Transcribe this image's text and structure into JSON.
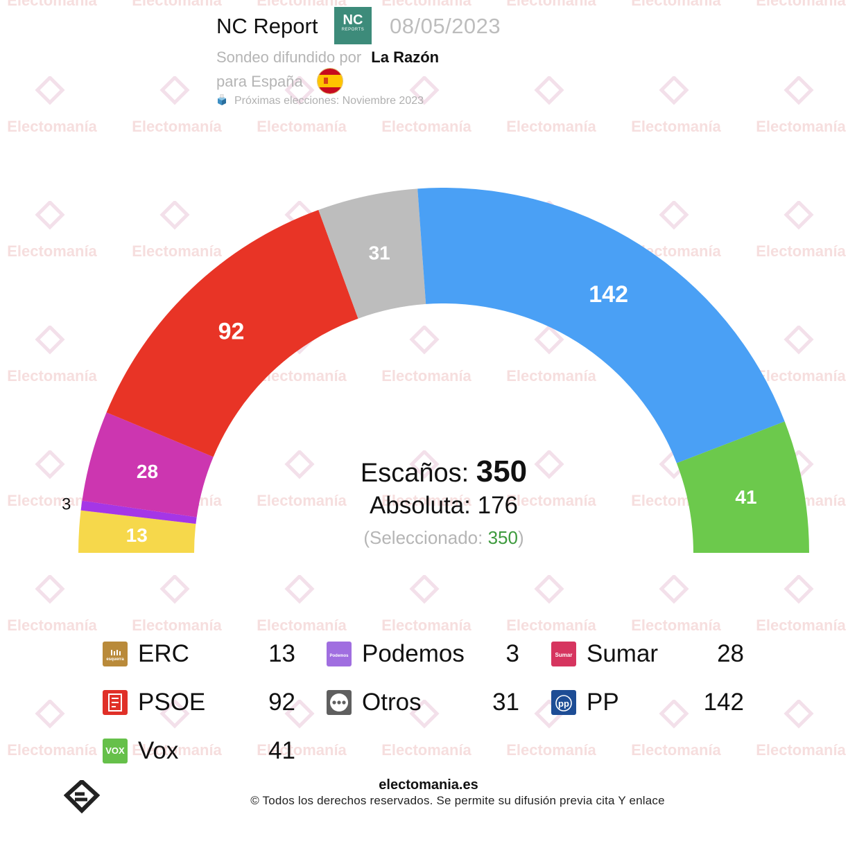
{
  "header": {
    "pollster": "NC Report",
    "pollster_logo_line1": "NC",
    "pollster_logo_line2": "REPORTS",
    "date": "08/05/2023",
    "published_prefix": "Sondeo difundido por",
    "media": "La Razón",
    "scope": "para España",
    "next_elections": "Próximas elecciones: Noviembre 2023"
  },
  "watermark_text": "Electomanía",
  "center": {
    "total_label": "Escaños:",
    "total_value": "350",
    "majority_label": "Absoluta:",
    "majority_value": "176",
    "selected_prefix": "(Seleccionado:",
    "selected_value": "350",
    "selected_suffix": ")"
  },
  "chart_data": {
    "type": "hemicycle",
    "total_seats": 350,
    "majority": 176,
    "selected": 350,
    "parties": [
      {
        "name": "ERC",
        "seats": 13,
        "color": "#f6d84b"
      },
      {
        "name": "Podemos",
        "seats": 3,
        "color": "#a536e6"
      },
      {
        "name": "Sumar",
        "seats": 28,
        "color": "#cc36b0"
      },
      {
        "name": "PSOE",
        "seats": 92,
        "color": "#e83426"
      },
      {
        "name": "Otros",
        "seats": 31,
        "color": "#bdbdbd"
      },
      {
        "name": "PP",
        "seats": 142,
        "color": "#4aa0f5"
      },
      {
        "name": "Vox",
        "seats": 41,
        "color": "#6cc94c"
      }
    ]
  },
  "legend": [
    {
      "name": "ERC",
      "value": "13",
      "icon": "erc-logo-icon",
      "icon_color": "#b98a3a",
      "icon_text": "esquerra"
    },
    {
      "name": "Podemos",
      "value": "3",
      "icon": "podemos-logo-icon",
      "icon_color": "#a06ee0",
      "icon_text": "Podemos"
    },
    {
      "name": "Sumar",
      "value": "28",
      "icon": "sumar-logo-icon",
      "icon_color": "#d6355f",
      "icon_text": "Sumar"
    },
    {
      "name": "PSOE",
      "value": "92",
      "icon": "psoe-logo-icon",
      "icon_color": "#e03028",
      "icon_text": ""
    },
    {
      "name": "Otros",
      "value": "31",
      "icon": "otros-dots-icon",
      "icon_color": "#5f5f5f",
      "icon_text": ""
    },
    {
      "name": "PP",
      "value": "142",
      "icon": "pp-logo-icon",
      "icon_color": "#1d4d95",
      "icon_text": "pp"
    },
    {
      "name": "Vox",
      "value": "41",
      "icon": "vox-logo-icon",
      "icon_color": "#66c04a",
      "icon_text": "VOX"
    }
  ],
  "footer": {
    "site": "electomania.es",
    "copyright": "© Todos los derechos reservados. Se permite su difusión previa cita Y enlace"
  }
}
